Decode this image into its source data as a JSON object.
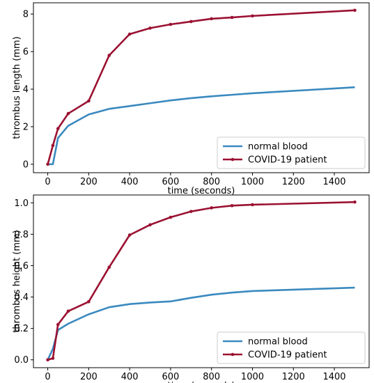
{
  "chart_data": [
    {
      "type": "line",
      "xlabel": "time (seconds)",
      "ylabel": "thrombus length (mm)",
      "xlim": [
        -70,
        1570
      ],
      "ylim": [
        -0.45,
        8.6
      ],
      "xticks": [
        0,
        200,
        400,
        600,
        800,
        1000,
        1200,
        1400
      ],
      "yticks": [
        0,
        2,
        4,
        6,
        8
      ],
      "ytick_labels": [
        "0",
        "2",
        "4",
        "6",
        "8"
      ],
      "legend_position": "lower-right",
      "grid": false,
      "series": [
        {
          "name": "normal blood",
          "color": "#3a89bf",
          "marker": false,
          "x": [
            0,
            25,
            50,
            100,
            200,
            300,
            400,
            500,
            600,
            700,
            800,
            900,
            1000,
            1500
          ],
          "y": [
            0,
            0,
            1.4,
            2.05,
            2.65,
            2.95,
            3.1,
            3.25,
            3.4,
            3.52,
            3.62,
            3.7,
            3.78,
            4.1
          ]
        },
        {
          "name": "COVID-19 patient",
          "color": "#9b1131",
          "marker": true,
          "x": [
            0,
            25,
            50,
            100,
            200,
            300,
            400,
            500,
            600,
            700,
            800,
            900,
            1000,
            1500
          ],
          "y": [
            0,
            1.0,
            1.9,
            2.7,
            3.37,
            5.8,
            6.93,
            7.25,
            7.45,
            7.6,
            7.75,
            7.82,
            7.9,
            8.2
          ]
        }
      ]
    },
    {
      "type": "line",
      "xlabel": "time (seconds)",
      "ylabel": "thrombus height (mm)",
      "xlim": [
        -70,
        1570
      ],
      "ylim": [
        -0.05,
        1.05
      ],
      "xticks": [
        0,
        200,
        400,
        600,
        800,
        1000,
        1200,
        1400
      ],
      "yticks": [
        0,
        0.2,
        0.4,
        0.6,
        0.8,
        1.0
      ],
      "ytick_labels": [
        "0.0",
        "0.2",
        "0.4",
        "0.6",
        "0.8",
        "1.0"
      ],
      "legend_position": "lower-right",
      "grid": false,
      "series": [
        {
          "name": "normal blood",
          "color": "#3a89bf",
          "marker": false,
          "x": [
            0,
            25,
            50,
            100,
            200,
            300,
            400,
            500,
            600,
            700,
            800,
            900,
            1000,
            1500
          ],
          "y": [
            0,
            0.07,
            0.19,
            0.23,
            0.29,
            0.335,
            0.355,
            0.365,
            0.372,
            0.395,
            0.415,
            0.428,
            0.438,
            0.46
          ]
        },
        {
          "name": "COVID-19 patient",
          "color": "#9b1131",
          "marker": true,
          "x": [
            0,
            25,
            50,
            100,
            200,
            300,
            400,
            500,
            600,
            700,
            800,
            900,
            1000,
            1500
          ],
          "y": [
            0,
            0.01,
            0.225,
            0.31,
            0.37,
            0.59,
            0.795,
            0.86,
            0.908,
            0.945,
            0.968,
            0.982,
            0.988,
            1.005
          ]
        }
      ]
    }
  ]
}
